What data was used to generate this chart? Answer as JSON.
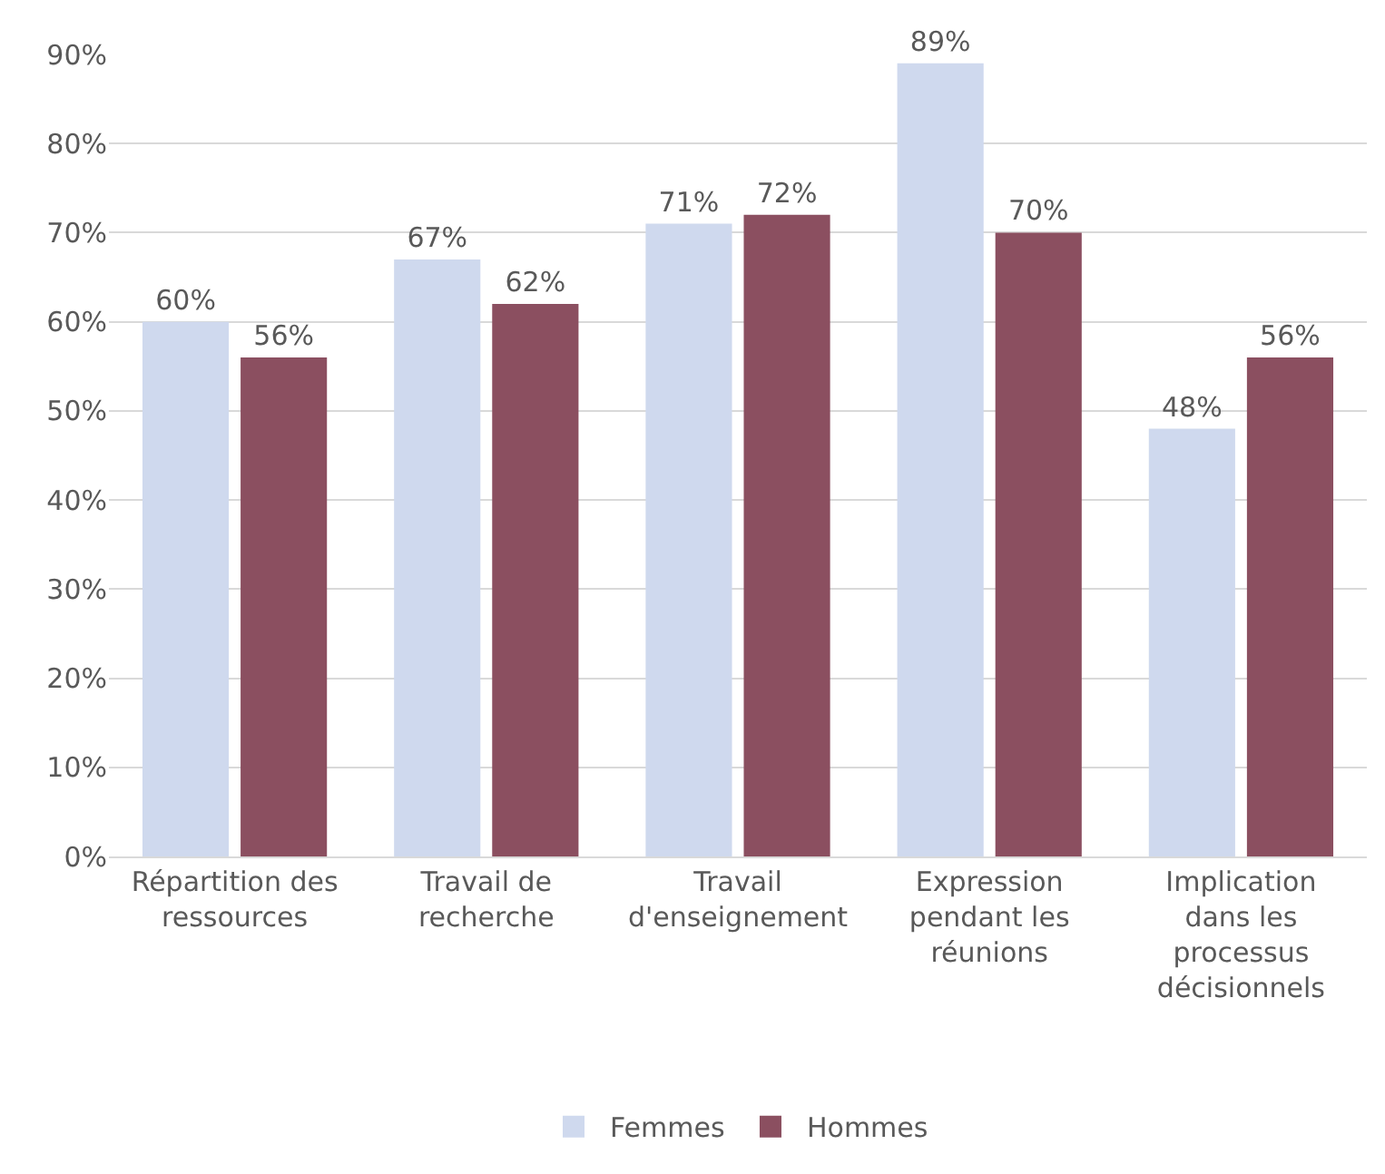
{
  "chart_data": {
    "type": "bar",
    "categories": [
      "Répartition des ressources",
      "Travail de recherche",
      "Travail d'enseignement",
      "Expression pendant les réunions",
      "Implication dans les processus décisionnels"
    ],
    "series": [
      {
        "name": "Femmes",
        "color": "#cfd9ee",
        "values": [
          60,
          67,
          71,
          89,
          48
        ],
        "value_labels": [
          "60%",
          "67%",
          "71%",
          "89%",
          "48%"
        ]
      },
      {
        "name": "Hommes",
        "color": "#8b4f60",
        "values": [
          56,
          62,
          72,
          70,
          56
        ],
        "value_labels": [
          "56%",
          "62%",
          "72%",
          "70%",
          "56%"
        ]
      }
    ],
    "ylim": [
      0,
      90
    ],
    "yticks": [
      {
        "value": 0,
        "label": "0%"
      },
      {
        "value": 10,
        "label": "10%"
      },
      {
        "value": 20,
        "label": "20%"
      },
      {
        "value": 30,
        "label": "30%"
      },
      {
        "value": 40,
        "label": "40%"
      },
      {
        "value": 50,
        "label": "50%"
      },
      {
        "value": 60,
        "label": "60%"
      },
      {
        "value": 70,
        "label": "70%"
      },
      {
        "value": 80,
        "label": "80%"
      },
      {
        "value": 90,
        "label": "90%"
      }
    ],
    "grid": "y",
    "legend": "bottom"
  }
}
